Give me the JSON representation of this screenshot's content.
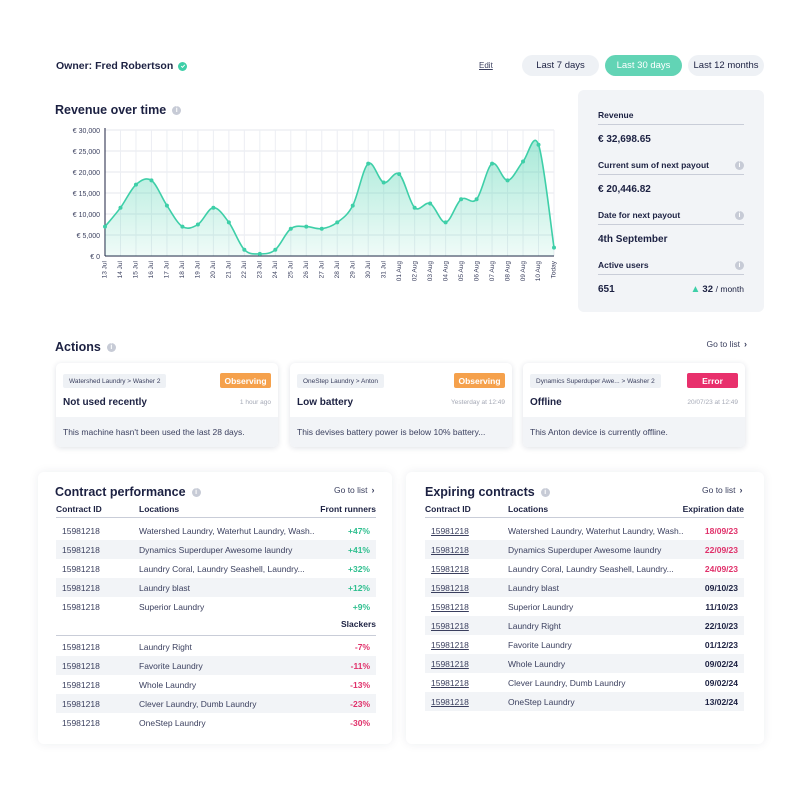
{
  "header": {
    "owner_label": "Owner: Fred Robertson",
    "edit_label": "Edit",
    "ranges": [
      "Last 7 days",
      "Last 30 days",
      "Last 12 months"
    ],
    "active_range": "Last 30 days"
  },
  "revenue": {
    "title": "Revenue over time"
  },
  "chart_data": {
    "type": "area",
    "title": "Revenue over time",
    "xlabel": "",
    "ylabel": "",
    "ylim": [
      0,
      30000
    ],
    "y_ticks": [
      "€ 0",
      "€ 5,000",
      "€ 10,000",
      "€ 15,000",
      "€ 20,000",
      "€ 25,000",
      "€ 30,000"
    ],
    "x": [
      "13 Jul",
      "14 Jul",
      "15 Jul",
      "16 Jul",
      "17 Jul",
      "18 Jul",
      "19 Jul",
      "20 Jul",
      "21 Jul",
      "22 Jul",
      "23 Jul",
      "24 Jul",
      "25 Jul",
      "26 Jul",
      "27 Jul",
      "28 Jul",
      "29 Jul",
      "30 Jul",
      "31 Jul",
      "01 Aug",
      "02 Aug",
      "03 Aug",
      "04 Aug",
      "05 Aug",
      "06 Aug",
      "07 Aug",
      "08 Aug",
      "09 Aug",
      "10 Aug",
      "Today"
    ],
    "series": [
      {
        "values": [
          7000,
          11500,
          17000,
          18000,
          12000,
          7000,
          7500,
          11500,
          8000,
          1500,
          500,
          1500,
          6500,
          7000,
          6500,
          8000,
          12000,
          22000,
          17500,
          19500,
          11500,
          12500,
          8000,
          13500,
          13500,
          22000,
          18000,
          22500,
          26500,
          2000
        ]
      }
    ],
    "grid": true,
    "colors": {
      "line": "#3ecfa8",
      "fill": "#3ecfa8"
    }
  },
  "stats": {
    "revenue_label": "Revenue",
    "revenue_value": "€ 32,698.65",
    "payout_label": "Current sum of next payout",
    "payout_value": "€ 20,446.82",
    "date_label": "Date for next payout",
    "date_value": "4th September",
    "users_label": "Active users",
    "users_value": "651",
    "users_change": "32",
    "users_unit": "/ month"
  },
  "actions": {
    "title": "Actions",
    "go_to_list": "Go to list",
    "cards": [
      {
        "crumb": "Watershed Laundry > Washer 2",
        "status": "Observing",
        "title": "Not used recently",
        "time": "1 hour ago",
        "message": "This machine hasn't been used the last 28 days."
      },
      {
        "crumb": "OneStep Laundry > Anton",
        "status": "Observing",
        "title": "Low battery",
        "time": "Yesterday at 12:49",
        "message": "This devises battery power is below 10% battery..."
      },
      {
        "crumb": "Dynamics Superduper Awe... > Washer 2",
        "status": "Error",
        "title": "Offline",
        "time": "20/07/23 at 12:49",
        "message": "This Anton device is currently offline."
      }
    ]
  },
  "contract_performance": {
    "title": "Contract performance",
    "go_to_list": "Go to list",
    "col_id": "Contract ID",
    "col_locations": "Locations",
    "col_front": "Front runners",
    "col_slackers": "Slackers",
    "front_runners": [
      {
        "id": "15981218",
        "location": "Watershed Laundry, Waterhut Laundry, Wash...",
        "value": "+47%"
      },
      {
        "id": "15981218",
        "location": "Dynamics Superduper Awesome laundry",
        "value": "+41%"
      },
      {
        "id": "15981218",
        "location": "Laundry Coral, Laundry Seashell, Laundry...",
        "value": "+32%"
      },
      {
        "id": "15981218",
        "location": "Laundry blast",
        "value": "+12%"
      },
      {
        "id": "15981218",
        "location": "Superior Laundry",
        "value": "+9%"
      }
    ],
    "slackers": [
      {
        "id": "15981218",
        "location": "Laundry Right",
        "value": "-7%"
      },
      {
        "id": "15981218",
        "location": "Favorite Laundry",
        "value": "-11%"
      },
      {
        "id": "15981218",
        "location": "Whole Laundry",
        "value": "-13%"
      },
      {
        "id": "15981218",
        "location": "Clever Laundry, Dumb Laundry",
        "value": "-23%"
      },
      {
        "id": "15981218",
        "location": "OneStep Laundry",
        "value": "-30%"
      }
    ]
  },
  "expiring_contracts": {
    "title": "Expiring contracts",
    "go_to_list": "Go to list",
    "col_id": "Contract ID",
    "col_locations": "Locations",
    "col_date": "Expiration date",
    "rows": [
      {
        "id": "15981218",
        "location": "Watershed Laundry, Waterhut Laundry, Wash...",
        "date": "18/09/23",
        "urgent": true
      },
      {
        "id": "15981218",
        "location": "Dynamics Superduper Awesome laundry",
        "date": "22/09/23",
        "urgent": true
      },
      {
        "id": "15981218",
        "location": "Laundry Coral, Laundry Seashell, Laundry...",
        "date": "24/09/23",
        "urgent": true
      },
      {
        "id": "15981218",
        "location": "Laundry blast",
        "date": "09/10/23",
        "urgent": false
      },
      {
        "id": "15981218",
        "location": "Superior Laundry",
        "date": "11/10/23",
        "urgent": false
      },
      {
        "id": "15981218",
        "location": "Laundry Right",
        "date": "22/10/23",
        "urgent": false
      },
      {
        "id": "15981218",
        "location": "Favorite Laundry",
        "date": "01/12/23",
        "urgent": false
      },
      {
        "id": "15981218",
        "location": "Whole Laundry",
        "date": "09/02/24",
        "urgent": false
      },
      {
        "id": "15981218",
        "location": "Clever Laundry, Dumb Laundry",
        "date": "09/02/24",
        "urgent": false
      },
      {
        "id": "15981218",
        "location": "OneStep Laundry",
        "date": "13/02/24",
        "urgent": false
      }
    ]
  }
}
